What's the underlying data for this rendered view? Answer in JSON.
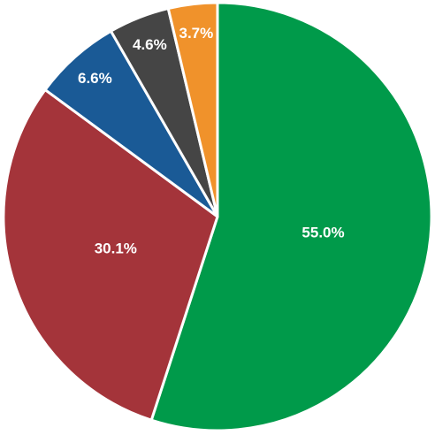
{
  "chart_data": {
    "type": "pie",
    "categories": [
      null,
      null,
      null,
      null,
      null
    ],
    "values": [
      55.0,
      30.1,
      6.6,
      4.6,
      3.7
    ],
    "value_labels": [
      "55.0%",
      "30.1%",
      "6.6%",
      "4.6%",
      "3.7%"
    ],
    "colors": [
      "#009a4a",
      "#a4343a",
      "#1a5a96",
      "#454545",
      "#f0922b"
    ]
  }
}
